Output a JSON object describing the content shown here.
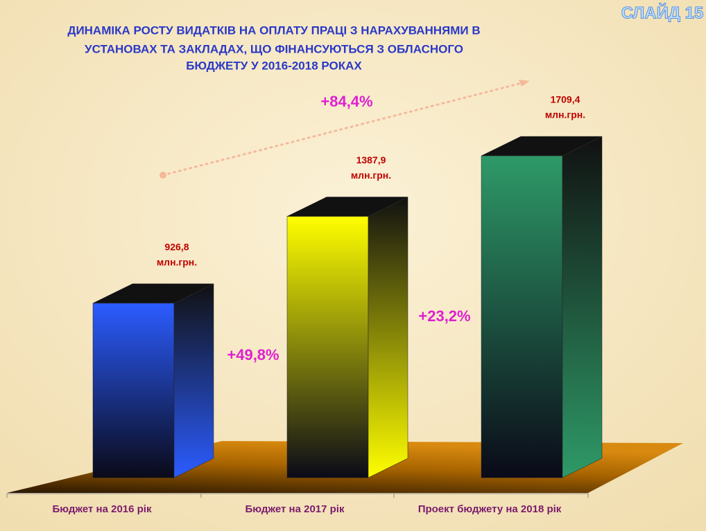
{
  "slide_label": "СЛАЙД 15",
  "chart_data": {
    "type": "bar3d",
    "title_lines": [
      "ДИНАМІКА  РОСТУ ВИДАТКІВ НА ОПЛАТУ ПРАЦІ З НАРАХУВАННЯМИ  В",
      "УСТАНОВАХ ТА ЗАКЛАДАХ,  ЩО ФІНАНСУЮТЬСЯ З ОБЛАСНОГО",
      "БЮДЖЕТУ У 2016-2018  РОКАХ"
    ],
    "categories": [
      "Бюджет на 2016 рік",
      "Бюджет на 2017 рік",
      "Проект бюджету на 2018 рік"
    ],
    "values": [
      926.8,
      1387.9,
      1709.4
    ],
    "value_labels": [
      "926,8",
      "1387,9",
      "1709,4"
    ],
    "unit": "млн.грн.",
    "colors": [
      "#2b5cff",
      "#ffff00",
      "#2e9a68"
    ],
    "annotations": [
      "+84,4%",
      "+49,8%",
      "+23,2%"
    ]
  }
}
